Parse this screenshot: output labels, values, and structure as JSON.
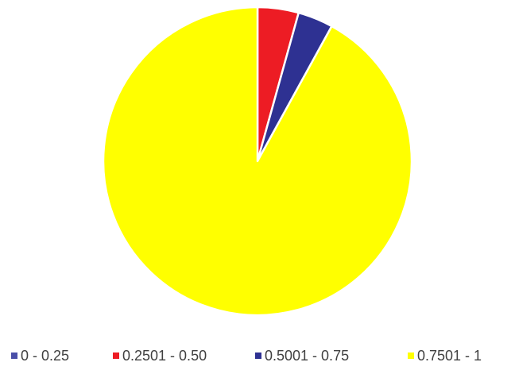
{
  "chart_data": {
    "type": "pie",
    "title": "",
    "slices": [
      {
        "label": "0 - 0.25",
        "value": 0,
        "color": "#4a4fa8"
      },
      {
        "label": "0.2501 - 0.50",
        "value": 4.3,
        "color": "#ed1c24"
      },
      {
        "label": "0.5001 - 0.75",
        "value": 3.7,
        "color": "#2e3192"
      },
      {
        "label": "0.7501 - 1",
        "value": 92.0,
        "color": "#ffff00"
      }
    ],
    "start_angle": "12 o'clock",
    "direction": "clockwise",
    "legend_position": "bottom"
  }
}
